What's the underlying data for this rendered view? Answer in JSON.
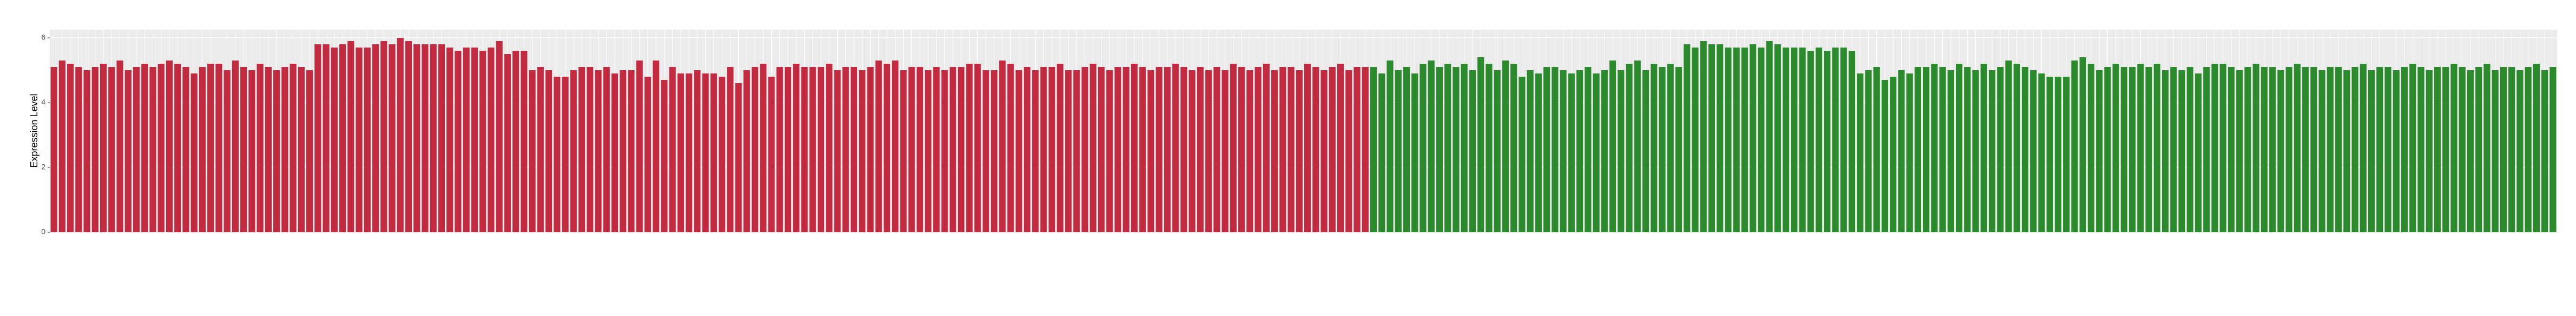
{
  "chart_data": {
    "type": "bar",
    "y_label": "Expression Level",
    "ylim": [
      0,
      6.25
    ],
    "yticks": [
      0,
      2,
      4,
      6
    ],
    "grid": true,
    "series": [
      {
        "color": "#c12a3f",
        "values": [
          5.1,
          5.3,
          5.2,
          5.1,
          5.0,
          5.1,
          5.2,
          5.1,
          5.3,
          5.0,
          5.1,
          5.2,
          5.1,
          5.2,
          5.3,
          5.2,
          5.1,
          4.9,
          5.1,
          5.2,
          5.2,
          5.0,
          5.3,
          5.1,
          5.0,
          5.2,
          5.1,
          5.0,
          5.1,
          5.2,
          5.1,
          5.0,
          5.8,
          5.8,
          5.7,
          5.8,
          5.9,
          5.7,
          5.7,
          5.8,
          5.9,
          5.8,
          6.0,
          5.9,
          5.8,
          5.8,
          5.8,
          5.8,
          5.7,
          5.6,
          5.7,
          5.7,
          5.6,
          5.7,
          5.9,
          5.5,
          5.6,
          5.6,
          5.0,
          5.1,
          5.0,
          4.8,
          4.8,
          5.0,
          5.1,
          5.1,
          5.0,
          5.1,
          4.9,
          5.0,
          5.0,
          5.3,
          4.8,
          5.3,
          4.7,
          5.1,
          4.9,
          4.9,
          5.0,
          4.9,
          4.9,
          4.8,
          5.1,
          4.6,
          5.0,
          5.1,
          5.2,
          4.8,
          5.1,
          5.1,
          5.2,
          5.1,
          5.1,
          5.1,
          5.2,
          5.0,
          5.1,
          5.1,
          5.0,
          5.1,
          5.3,
          5.2,
          5.3,
          5.0,
          5.1,
          5.1,
          5.0,
          5.1,
          5.0,
          5.1,
          5.1,
          5.2,
          5.2,
          5.0,
          5.0,
          5.3,
          5.2,
          5.0,
          5.1,
          5.0,
          5.1,
          5.1,
          5.2,
          5.0,
          5.0,
          5.1,
          5.2,
          5.1,
          5.0,
          5.1,
          5.1,
          5.2,
          5.1,
          5.0,
          5.1,
          5.1,
          5.2,
          5.1,
          5.0,
          5.1,
          5.0,
          5.1,
          5.0,
          5.2,
          5.1,
          5.0,
          5.1,
          5.2,
          5.0,
          5.1,
          5.1,
          5.0,
          5.2,
          5.1,
          5.0,
          5.1,
          5.2,
          5.0,
          5.1,
          5.1,
          null,
          null,
          null,
          null,
          null,
          null,
          null,
          null,
          null,
          null,
          null,
          null,
          null,
          null,
          null,
          null,
          null,
          null,
          null,
          null,
          null,
          null,
          null,
          null,
          null,
          null,
          null,
          null,
          null,
          null,
          null,
          null,
          null,
          null,
          null,
          null,
          null,
          null,
          null,
          null,
          null,
          null,
          null,
          null,
          null,
          null,
          null,
          null,
          null,
          null,
          null,
          null,
          null,
          null,
          null,
          null,
          null,
          null,
          null,
          null,
          null,
          null,
          null,
          null,
          null,
          null,
          null,
          null,
          null,
          null,
          null,
          null,
          null,
          null,
          null,
          null,
          null,
          null,
          null,
          null,
          null,
          null,
          null,
          null,
          null,
          null,
          null,
          null,
          null,
          null,
          null,
          null,
          null,
          null,
          null,
          null,
          null,
          null,
          null,
          null,
          null,
          null,
          null,
          null,
          null,
          null,
          null,
          null,
          null,
          null,
          null,
          null,
          null,
          null,
          null,
          null,
          null,
          null,
          null,
          null,
          null,
          null,
          null,
          null,
          null,
          null,
          null,
          null,
          null,
          null,
          null,
          null,
          null,
          null,
          null,
          null,
          null,
          null,
          null,
          null,
          null,
          null,
          null,
          null
        ]
      },
      {
        "color": "#2b8a2b",
        "values": [
          null,
          null,
          null,
          null,
          null,
          null,
          null,
          null,
          null,
          null,
          null,
          null,
          null,
          null,
          null,
          null,
          null,
          null,
          null,
          null,
          null,
          null,
          null,
          null,
          null,
          null,
          null,
          null,
          null,
          null,
          null,
          null,
          null,
          null,
          null,
          null,
          null,
          null,
          null,
          null,
          null,
          null,
          null,
          null,
          null,
          null,
          null,
          null,
          null,
          null,
          null,
          null,
          null,
          null,
          null,
          null,
          null,
          null,
          null,
          null,
          null,
          null,
          null,
          null,
          null,
          null,
          null,
          null,
          null,
          null,
          null,
          null,
          null,
          null,
          null,
          null,
          null,
          null,
          null,
          null,
          null,
          null,
          null,
          null,
          null,
          null,
          null,
          null,
          null,
          null,
          null,
          null,
          null,
          null,
          null,
          null,
          null,
          null,
          null,
          null,
          null,
          null,
          null,
          null,
          null,
          null,
          null,
          null,
          null,
          null,
          null,
          null,
          null,
          null,
          null,
          null,
          null,
          null,
          null,
          null,
          null,
          null,
          null,
          null,
          null,
          null,
          null,
          null,
          null,
          null,
          null,
          null,
          null,
          null,
          null,
          null,
          null,
          null,
          null,
          null,
          null,
          null,
          null,
          null,
          null,
          null,
          null,
          null,
          null,
          null,
          null,
          null,
          null,
          null,
          null,
          null,
          null,
          null,
          null,
          null,
          5.1,
          4.9,
          5.3,
          5.0,
          5.1,
          4.9,
          5.2,
          5.3,
          5.1,
          5.2,
          5.1,
          5.2,
          5.0,
          5.4,
          5.2,
          5.0,
          5.3,
          5.2,
          4.8,
          5.0,
          4.9,
          5.1,
          5.1,
          5.0,
          4.9,
          5.0,
          5.1,
          4.9,
          5.0,
          5.3,
          5.0,
          5.2,
          5.3,
          5.0,
          5.2,
          5.1,
          5.2,
          5.1,
          5.8,
          5.7,
          5.9,
          5.8,
          5.8,
          5.7,
          5.7,
          5.7,
          5.8,
          5.7,
          5.9,
          5.8,
          5.7,
          5.7,
          5.7,
          5.6,
          5.7,
          5.6,
          5.7,
          5.7,
          5.6,
          4.9,
          5.0,
          5.1,
          4.7,
          4.8,
          5.0,
          4.9,
          5.1,
          5.1,
          5.2,
          5.1,
          5.0,
          5.2,
          5.1,
          5.0,
          5.2,
          5.0,
          5.1,
          5.3,
          5.2,
          5.1,
          5.0,
          4.9,
          4.8,
          4.8,
          4.8,
          5.3,
          5.4,
          5.2,
          5.0,
          5.1,
          5.2,
          5.1,
          5.1,
          5.2,
          5.1,
          5.2,
          5.0,
          5.1,
          5.0,
          5.1,
          4.9,
          5.1,
          5.2,
          5.2,
          5.1,
          5.0,
          5.1,
          5.2,
          5.1,
          5.1,
          5.0,
          5.1,
          5.2,
          5.1,
          5.1,
          5.0,
          5.1,
          5.1,
          5.0,
          5.1,
          5.2,
          5.0,
          5.1,
          5.1,
          5.0,
          5.1,
          5.2,
          5.1,
          5.0,
          5.1,
          5.1,
          5.2,
          5.1,
          5.0,
          5.1,
          5.2,
          5.0,
          5.1,
          5.1,
          5.0,
          5.1,
          5.2,
          5.0,
          5.1
        ]
      }
    ]
  }
}
